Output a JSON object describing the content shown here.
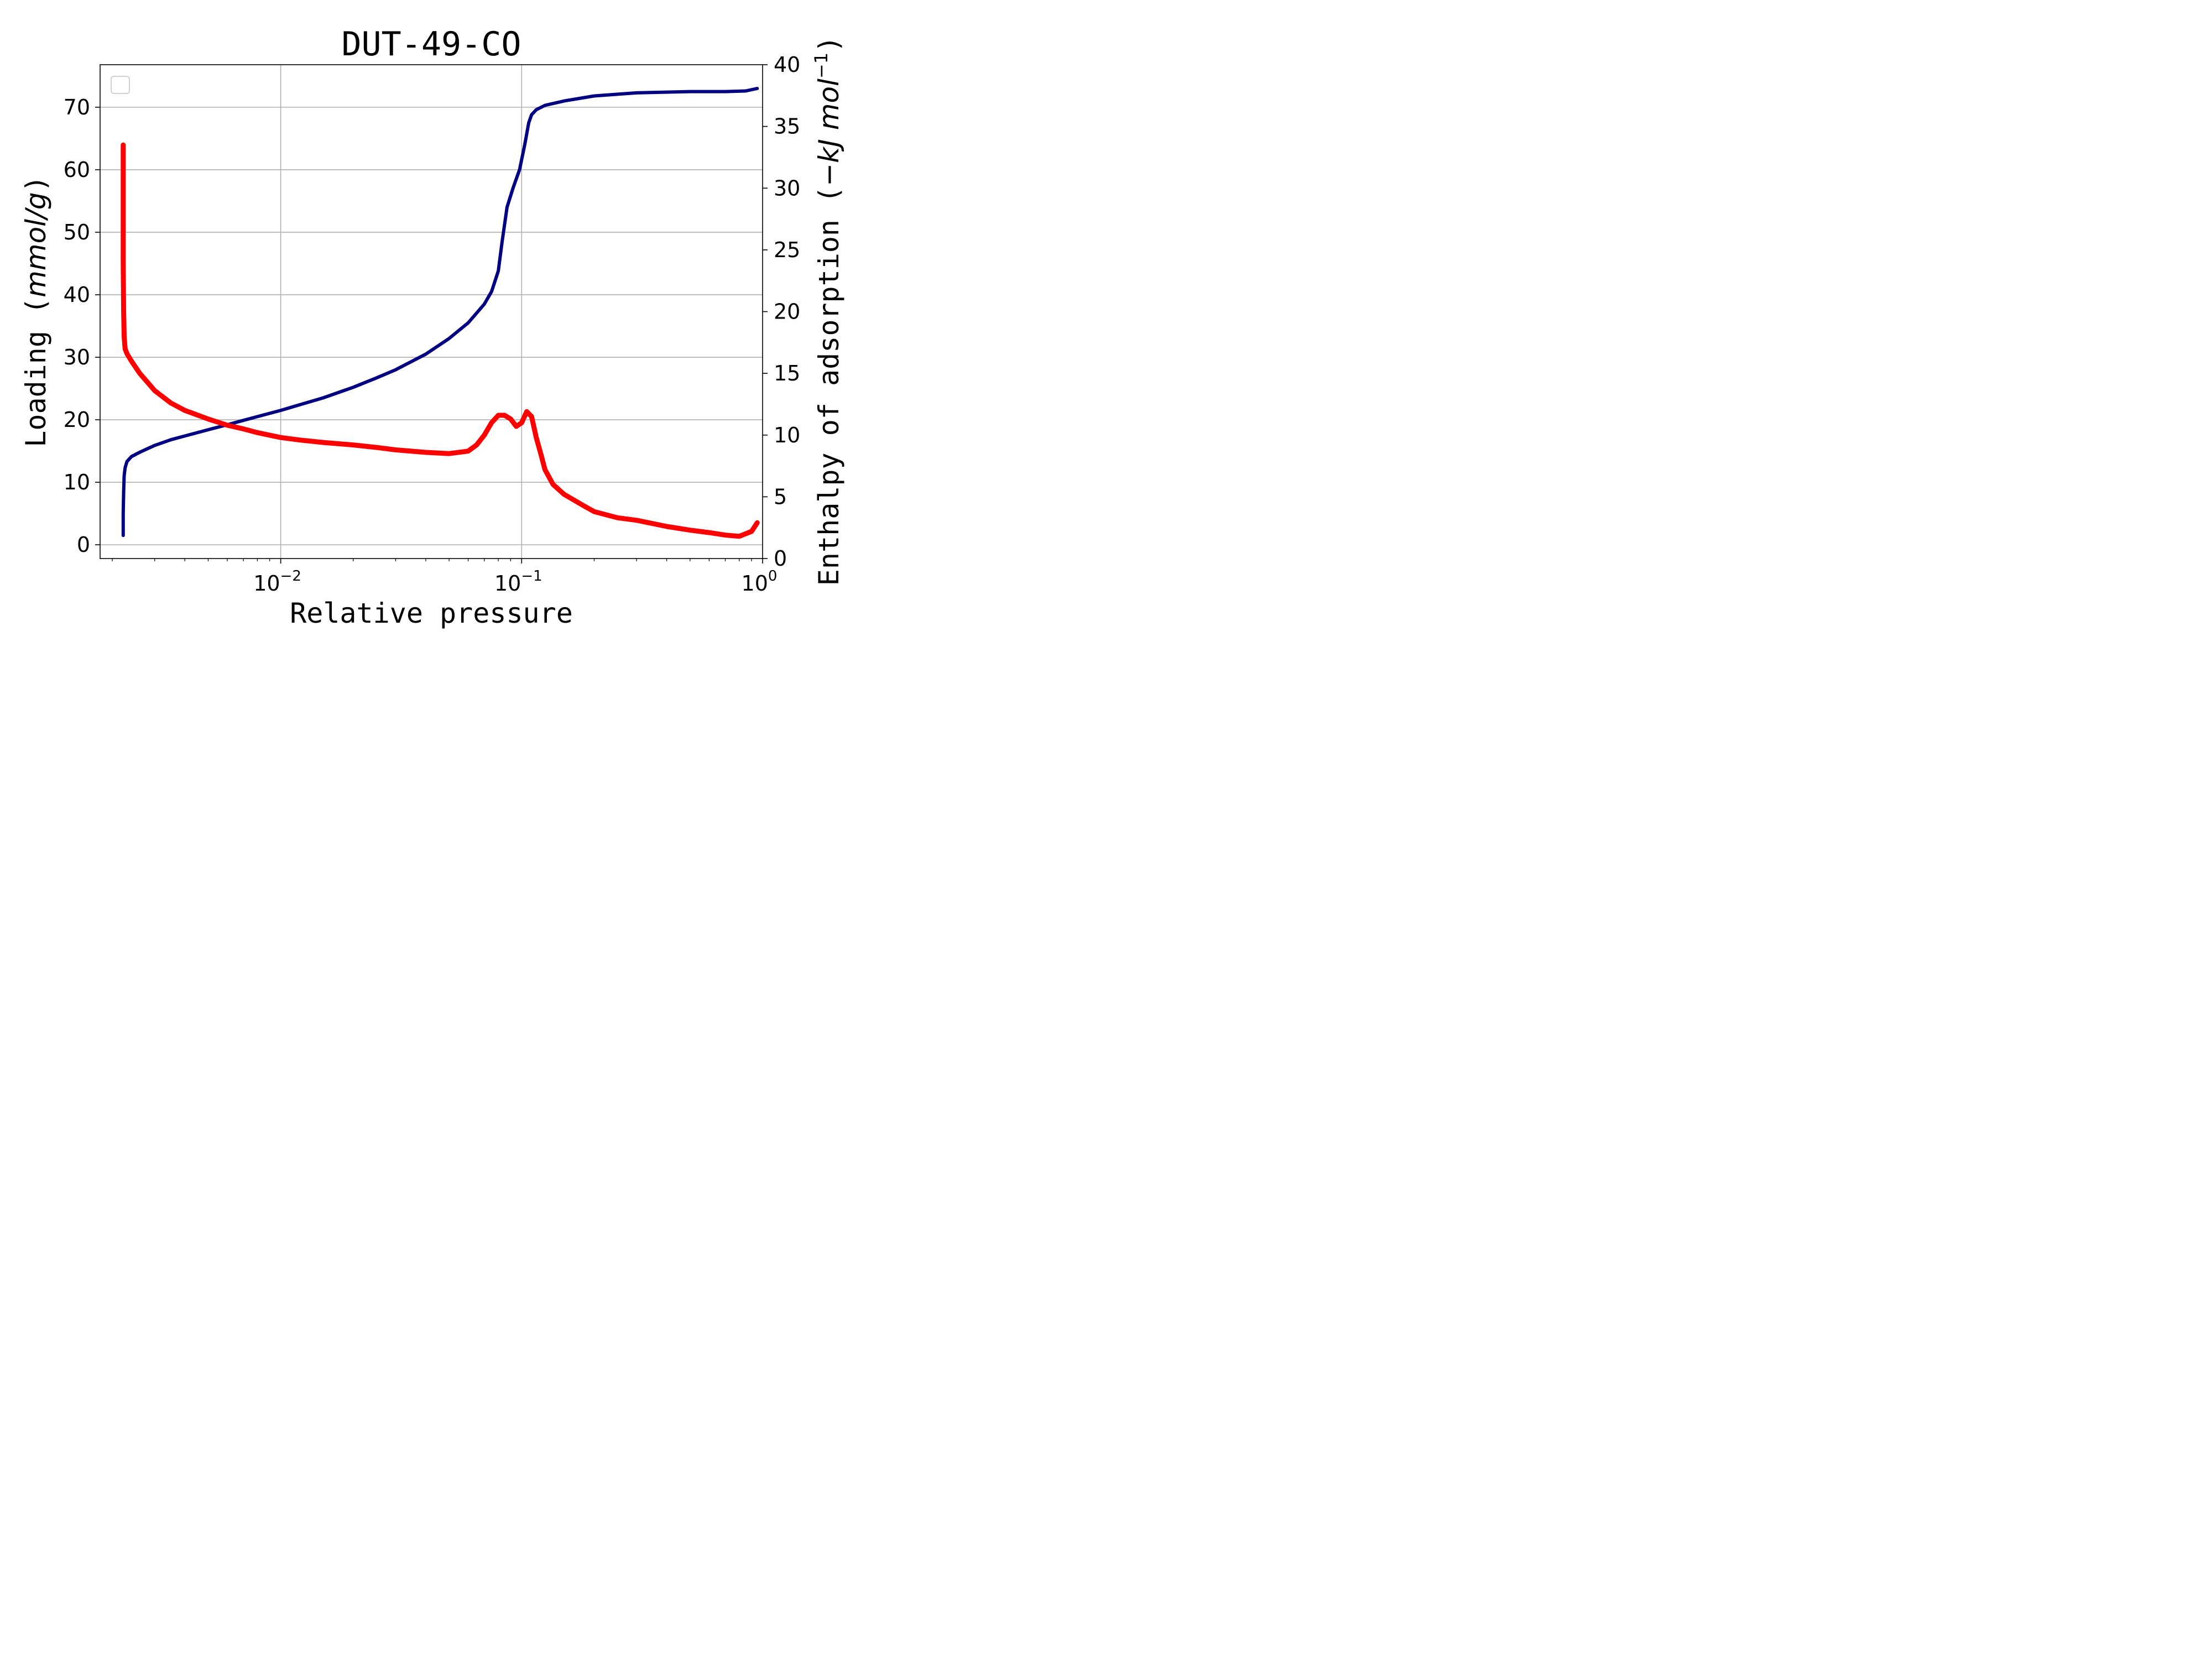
{
  "chart_data": {
    "type": "line",
    "title": "DUT-49-CO",
    "xlabel": "Relative pressure",
    "ylabel": {
      "text": "Loading (",
      "unit": "mmol/g",
      "close": ")"
    },
    "y2label": {
      "text": "Enthalpy of adsorption (",
      "unit_pre": "−kJ mol",
      "unit_exp": "−1",
      "close": ")"
    },
    "x_scale": "log",
    "xlim": [
      0.00178,
      1.0
    ],
    "ylim": [
      -2.2,
      76.8
    ],
    "y2lim": [
      0,
      40
    ],
    "grid": true,
    "legend": {
      "placement": "top-left",
      "entries": []
    },
    "x_ticks": [
      {
        "value": 0.01,
        "base": "10",
        "exp": "−2"
      },
      {
        "value": 0.1,
        "base": "10",
        "exp": "−1"
      },
      {
        "value": 1.0,
        "base": "10",
        "exp": "0"
      }
    ],
    "y_ticks": [
      0,
      10,
      20,
      30,
      40,
      50,
      60,
      70
    ],
    "y2_ticks": [
      0,
      5,
      10,
      15,
      20,
      25,
      30,
      35,
      40
    ],
    "series": [
      {
        "axis": "left",
        "color": "#000080",
        "x": [
          0.00222,
          0.00222,
          0.00223,
          0.00224,
          0.00226,
          0.0023,
          0.0024,
          0.0026,
          0.003,
          0.0035,
          0.004,
          0.005,
          0.006,
          0.007,
          0.008,
          0.01,
          0.012,
          0.015,
          0.02,
          0.025,
          0.03,
          0.04,
          0.05,
          0.06,
          0.07,
          0.075,
          0.08,
          0.083,
          0.087,
          0.092,
          0.098,
          0.103,
          0.107,
          0.11,
          0.115,
          0.125,
          0.15,
          0.2,
          0.3,
          0.5,
          0.7,
          0.85,
          0.95
        ],
        "y": [
          1.5,
          5.0,
          8.5,
          11.0,
          12.3,
          13.3,
          14.1,
          14.8,
          15.9,
          16.8,
          17.4,
          18.4,
          19.2,
          19.9,
          20.5,
          21.5,
          22.4,
          23.5,
          25.2,
          26.7,
          28.0,
          30.5,
          33.0,
          35.5,
          38.5,
          40.5,
          43.8,
          48.5,
          54.0,
          57.0,
          60.0,
          64.0,
          67.5,
          68.8,
          69.6,
          70.3,
          71.0,
          71.8,
          72.3,
          72.5,
          72.5,
          72.6,
          73.0
        ]
      },
      {
        "axis": "right",
        "color": "#ff0000",
        "x": [
          0.00222,
          0.00222,
          0.00223,
          0.00224,
          0.00226,
          0.0023,
          0.0024,
          0.0026,
          0.003,
          0.0035,
          0.004,
          0.005,
          0.006,
          0.007,
          0.008,
          0.01,
          0.012,
          0.015,
          0.02,
          0.025,
          0.03,
          0.04,
          0.05,
          0.06,
          0.065,
          0.07,
          0.075,
          0.08,
          0.085,
          0.09,
          0.095,
          0.1,
          0.105,
          0.11,
          0.115,
          0.12,
          0.125,
          0.135,
          0.15,
          0.18,
          0.2,
          0.25,
          0.3,
          0.4,
          0.5,
          0.6,
          0.7,
          0.8,
          0.9,
          0.95
        ],
        "y": [
          33.5,
          24.0,
          20.0,
          18.0,
          17.0,
          16.6,
          16.0,
          15.0,
          13.6,
          12.6,
          12.0,
          11.3,
          10.8,
          10.5,
          10.2,
          9.8,
          9.6,
          9.4,
          9.2,
          9.0,
          8.8,
          8.6,
          8.5,
          8.7,
          9.2,
          10.0,
          11.0,
          11.6,
          11.6,
          11.3,
          10.7,
          11.0,
          11.9,
          11.5,
          9.8,
          8.5,
          7.2,
          6.0,
          5.2,
          4.3,
          3.8,
          3.3,
          3.1,
          2.6,
          2.3,
          2.1,
          1.9,
          1.8,
          2.2,
          2.9
        ]
      }
    ]
  }
}
